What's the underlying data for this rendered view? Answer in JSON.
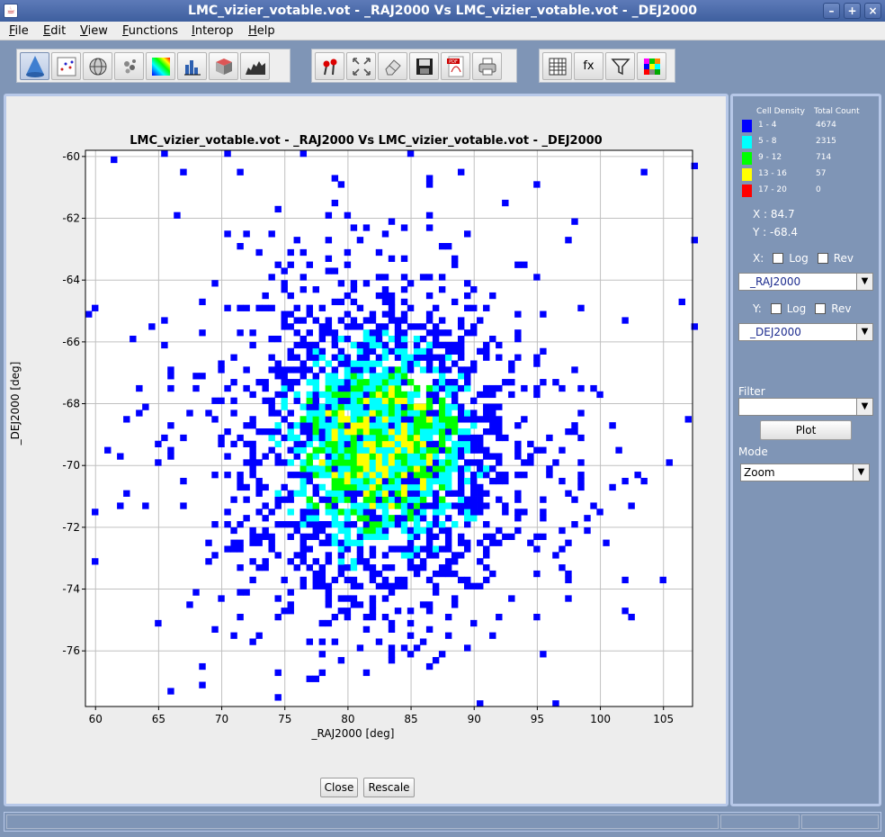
{
  "window": {
    "title": "LMC_vizier_votable.vot - _RAJ2000   Vs  LMC_vizier_votable.vot - _DEJ2000"
  },
  "menu": [
    "File",
    "Edit",
    "View",
    "Functions",
    "Interop",
    "Help"
  ],
  "toolbar_icons": {
    "group1": [
      "cone-icon",
      "scatter-icon",
      "globe-icon",
      "cluster-icon",
      "density-icon",
      "histogram-icon",
      "cube-icon",
      "area-chart-icon"
    ],
    "group2": [
      "pin-icon",
      "fit-icon",
      "eraser-icon",
      "save-icon",
      "pdf-icon",
      "print-icon"
    ],
    "group3": [
      "table-icon",
      "function-icon",
      "filter-icon",
      "palette-icon"
    ]
  },
  "toolbar_text": {
    "fx": "fx",
    "pdf": "PDF"
  },
  "chart_data": {
    "type": "heatmap",
    "title": "LMC_vizier_votable.vot - _RAJ2000   Vs  LMC_vizier_votable.vot - _DEJ2000",
    "xlabel": "_RAJ2000 [deg]",
    "ylabel": "_DEJ2000 [deg]",
    "xlim": [
      59.2,
      107.3
    ],
    "ylim": [
      -77.8,
      -59.8
    ],
    "xticks": [
      60,
      65,
      70,
      75,
      80,
      85,
      90,
      95,
      100,
      105
    ],
    "yticks": [
      -60,
      -62,
      -64,
      -66,
      -68,
      -70,
      -72,
      -74,
      -76
    ],
    "grid": true,
    "cell_counts": {
      "center_x": 82.5,
      "center_y": -69.5,
      "sigma_x": 6.5,
      "sigma_y": 2.9
    },
    "density_classes": [
      {
        "range": "1 - 4",
        "count": "4674",
        "color": "#0000ff"
      },
      {
        "range": "5 - 8",
        "count": "2315",
        "color": "#00ffff"
      },
      {
        "range": "9 - 12",
        "count": "714",
        "color": "#00ff00"
      },
      {
        "range": "13 - 16",
        "count": "57",
        "color": "#ffff00"
      },
      {
        "range": "17 - 20",
        "count": "0",
        "color": "#ff0000"
      }
    ]
  },
  "buttons": {
    "close": "Close",
    "rescale": "Rescale",
    "plot": "Plot"
  },
  "side": {
    "legend_head_density": "Cell Density",
    "legend_head_count": "Total Count",
    "x_readout": "X : 84.7",
    "y_readout": "Y : -68.4",
    "x_label": "X:",
    "y_label": "Y:",
    "log": "Log",
    "rev": "Rev",
    "x_column": "_RAJ2000",
    "y_column": "_DEJ2000",
    "filter_label": "Filter",
    "filter_value": "",
    "mode_label": "Mode",
    "mode_value": "Zoom"
  }
}
